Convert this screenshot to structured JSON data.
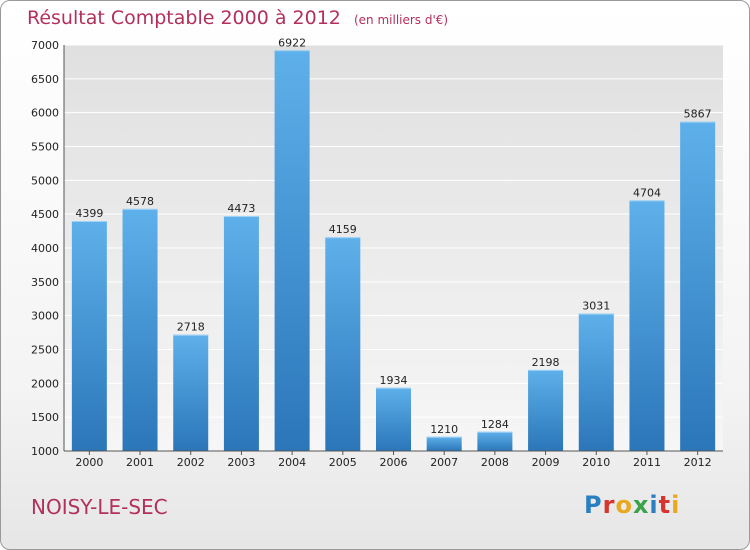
{
  "title": "Résultat Comptable 2000 à 2012",
  "subtitle": "(en milliers d'€)",
  "commune": "NOISY-LE-SEC",
  "logo": {
    "text": "Proxiti",
    "colors": [
      "#2a7fc0",
      "#d9342b",
      "#e8a81f",
      "#3aa34a",
      "#2a7fc0",
      "#d9342b",
      "#e8a81f"
    ]
  },
  "colors": {
    "bar": "#4ea3e0",
    "title": "#b3305a"
  },
  "chart_data": {
    "type": "bar",
    "title": "Résultat Comptable 2000 à 2012",
    "categories": [
      "2000",
      "2001",
      "2002",
      "2003",
      "2004",
      "2005",
      "2006",
      "2007",
      "2008",
      "2009",
      "2010",
      "2011",
      "2012"
    ],
    "values": [
      4399,
      4578,
      2718,
      4473,
      6922,
      4159,
      1934,
      1210,
      1284,
      2198,
      3031,
      4704,
      5867
    ],
    "yticks": [
      1000,
      1500,
      2000,
      2500,
      3000,
      3500,
      4000,
      4500,
      5000,
      5500,
      6000,
      6500,
      7000
    ],
    "ylim": [
      1000,
      7000
    ],
    "xlabel": "",
    "ylabel": "",
    "grid": true,
    "legend": "none"
  }
}
